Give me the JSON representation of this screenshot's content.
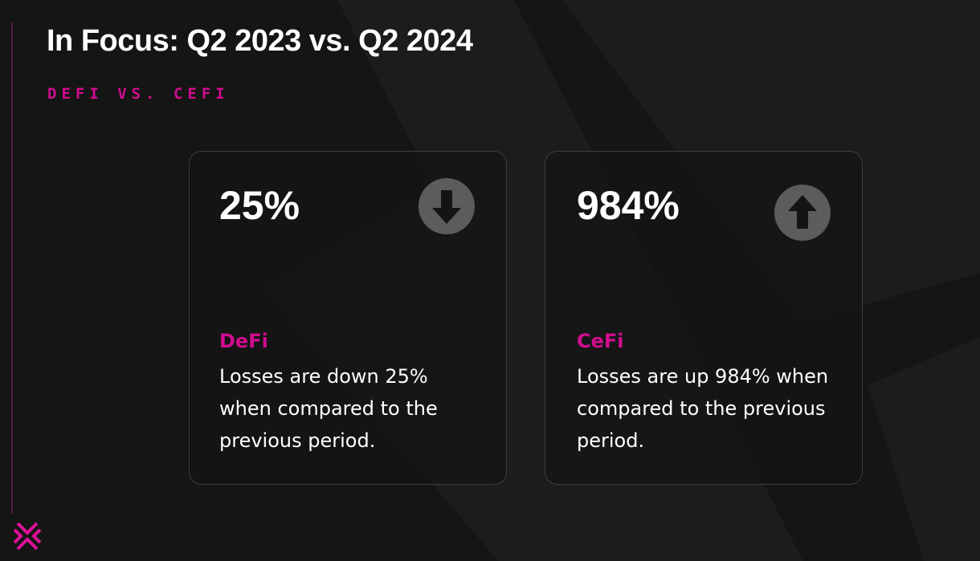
{
  "header": {
    "title": "In Focus: Q2 2023 vs. Q2 2024",
    "subtitle": "DEFI VS. CEFI"
  },
  "cards": [
    {
      "value": "25%",
      "label": "DeFi",
      "text": "Losses are down 25% when compared to the previous period."
    },
    {
      "value": "984%",
      "label": "CeFi",
      "text": "Losses are up 984% when compared to the previous period."
    }
  ]
}
